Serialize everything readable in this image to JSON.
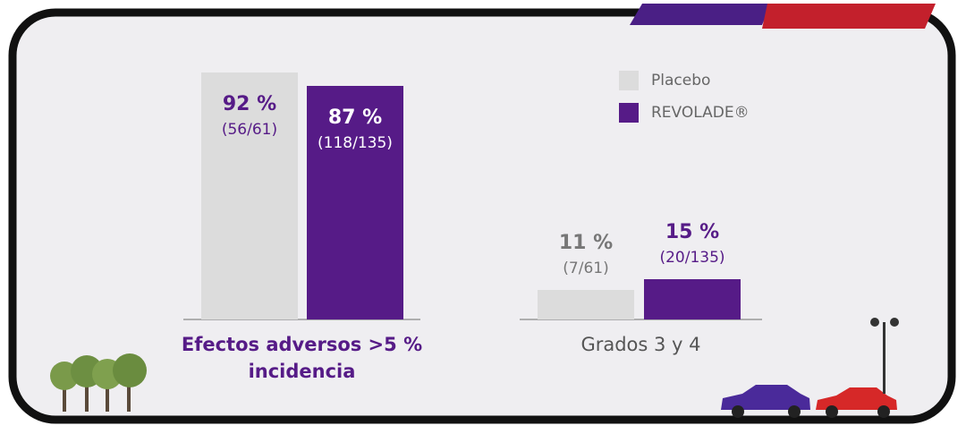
{
  "chart_data": {
    "type": "bar",
    "categories": [
      "Efectos adversos >5 % incidencia",
      "Grados 3 y 4"
    ],
    "series": [
      {
        "name": "Placebo",
        "color": "#dcdcdc",
        "values": [
          92,
          11
        ],
        "value_labels": [
          "92 %",
          "11 %"
        ],
        "count_labels": [
          "(56/61)",
          "(7/61)"
        ]
      },
      {
        "name": "REVOLADE®",
        "color": "#561b87",
        "values": [
          87,
          15
        ],
        "value_labels": [
          "87 %",
          "15 %"
        ],
        "count_labels": [
          "(118/135)",
          "(20/135)"
        ]
      }
    ],
    "ylim": [
      0,
      100
    ],
    "legend": "upper right"
  }
}
